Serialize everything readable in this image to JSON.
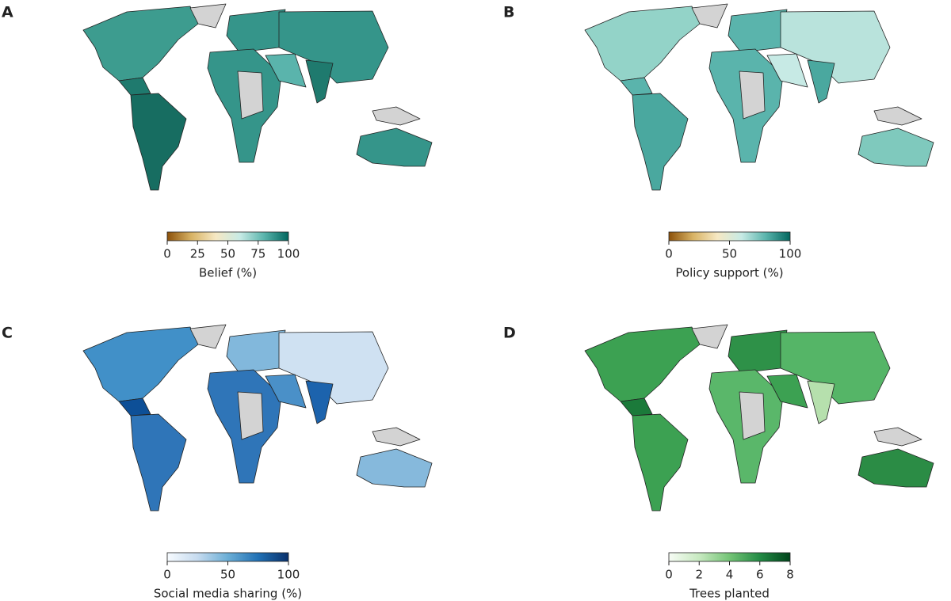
{
  "panels": [
    {
      "label": "A",
      "colorbar": {
        "label": "Belief (%)",
        "lim": [
          0,
          100
        ],
        "ticks": [
          0,
          25,
          50,
          75,
          100
        ],
        "colors": [
          "#8c510a",
          "#d8b365",
          "#f6e8c3",
          "#c7eae5",
          "#5ab4ac",
          "#01665e"
        ]
      }
    },
    {
      "label": "B",
      "colorbar": {
        "label": "Policy support (%)",
        "lim": [
          0,
          100
        ],
        "ticks": [
          0,
          50,
          100
        ],
        "colors": [
          "#8c510a",
          "#d8b365",
          "#f6e8c3",
          "#c7eae5",
          "#5ab4ac",
          "#01665e"
        ]
      }
    },
    {
      "label": "C",
      "colorbar": {
        "label": "Social media sharing (%)",
        "lim": [
          0,
          100
        ],
        "ticks": [
          0,
          50,
          100
        ],
        "colors": [
          "#f7fbff",
          "#c6dbef",
          "#6baed6",
          "#2171b5",
          "#08306b"
        ]
      }
    },
    {
      "label": "D",
      "colorbar": {
        "label": "Trees planted",
        "lim": [
          0,
          8
        ],
        "ticks": [
          0,
          2,
          4,
          6,
          8
        ],
        "colors": [
          "#f7fcf5",
          "#c7e9c0",
          "#74c476",
          "#238b45",
          "#00441b"
        ]
      }
    }
  ]
}
